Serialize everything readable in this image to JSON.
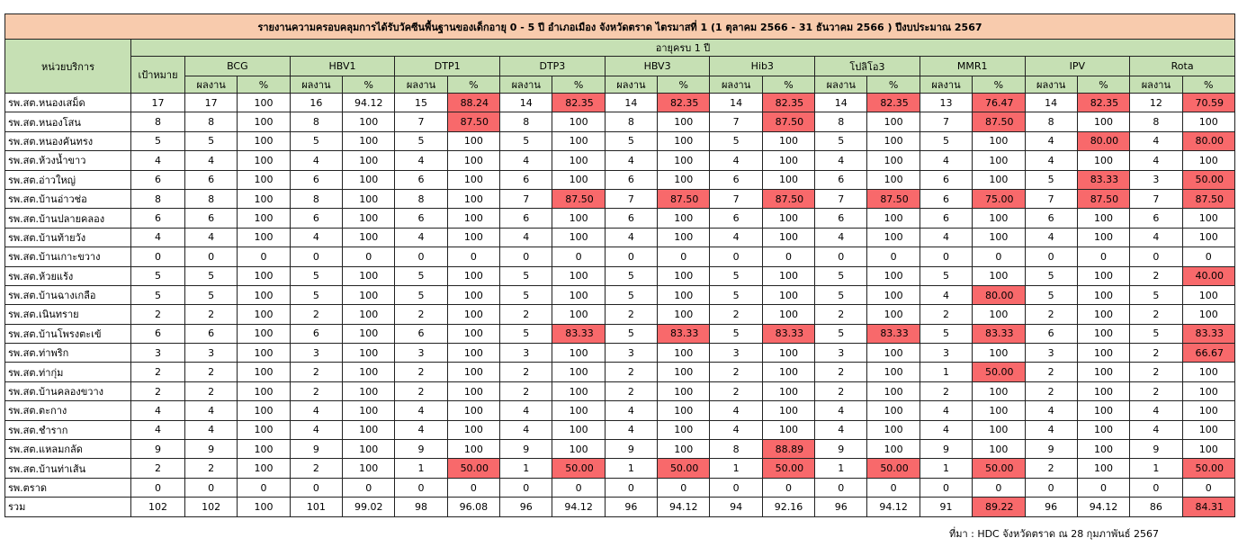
{
  "title": "รายงานความครอบคลุมการได้รับวัคซีนพื้นฐานของเด็กอายุ 0 - 5 ปี อำเภอเมือง จังหวัดตราด ไตรมาสที่ 1 (1 ตุลาคม 2566 - 31 ธันวาคม 2566 ) ปีงบประมาณ 2567",
  "headers": {
    "unit": "หน่วยบริการ",
    "group": "อายุครบ 1 ปี",
    "target": "เป้าหมาย",
    "vaccines": [
      "BCG",
      "HBV1",
      "DTP1",
      "DTP3",
      "HBV3",
      "Hib3",
      "โปลิโอ3",
      "MMR1",
      "IPV",
      "Rota"
    ],
    "sub": [
      "ผลงาน",
      "%"
    ]
  },
  "table": {
    "rows": [
      [
        "รพ.สต.หนองเสม็ด",
        "17",
        "17",
        "100",
        "16",
        "94.12",
        "15",
        "88.24",
        "14",
        "82.35",
        "14",
        "82.35",
        "14",
        "82.35",
        "14",
        "82.35",
        "13",
        "76.47",
        "14",
        "82.35",
        "12",
        "70.59"
      ],
      [
        "รพ.สต.หนองโสน",
        "8",
        "8",
        "100",
        "8",
        "100",
        "7",
        "87.50",
        "8",
        "100",
        "8",
        "100",
        "7",
        "87.50",
        "8",
        "100",
        "7",
        "87.50",
        "8",
        "100",
        "8",
        "100"
      ],
      [
        "รพ.สต.หนองคันทรง",
        "5",
        "5",
        "100",
        "5",
        "100",
        "5",
        "100",
        "5",
        "100",
        "5",
        "100",
        "5",
        "100",
        "5",
        "100",
        "5",
        "100",
        "4",
        "80.00",
        "4",
        "80.00"
      ],
      [
        "รพ.สต.ห้วงน้ำขาว",
        "4",
        "4",
        "100",
        "4",
        "100",
        "4",
        "100",
        "4",
        "100",
        "4",
        "100",
        "4",
        "100",
        "4",
        "100",
        "4",
        "100",
        "4",
        "100",
        "4",
        "100"
      ],
      [
        "รพ.สต.อ่าวใหญ่",
        "6",
        "6",
        "100",
        "6",
        "100",
        "6",
        "100",
        "6",
        "100",
        "6",
        "100",
        "6",
        "100",
        "6",
        "100",
        "6",
        "100",
        "5",
        "83.33",
        "3",
        "50.00"
      ],
      [
        "รพ.สต.บ้านอ่าวช่อ",
        "8",
        "8",
        "100",
        "8",
        "100",
        "8",
        "100",
        "7",
        "87.50",
        "7",
        "87.50",
        "7",
        "87.50",
        "7",
        "87.50",
        "6",
        "75.00",
        "7",
        "87.50",
        "7",
        "87.50"
      ],
      [
        "รพ.สต.บ้านปลายคลอง",
        "6",
        "6",
        "100",
        "6",
        "100",
        "6",
        "100",
        "6",
        "100",
        "6",
        "100",
        "6",
        "100",
        "6",
        "100",
        "6",
        "100",
        "6",
        "100",
        "6",
        "100"
      ],
      [
        "รพ.สต.บ้านท้ายวัง",
        "4",
        "4",
        "100",
        "4",
        "100",
        "4",
        "100",
        "4",
        "100",
        "4",
        "100",
        "4",
        "100",
        "4",
        "100",
        "4",
        "100",
        "4",
        "100",
        "4",
        "100"
      ],
      [
        "รพ.สต.บ้านเกาะขวาง",
        "0",
        "0",
        "0",
        "0",
        "0",
        "0",
        "0",
        "0",
        "0",
        "0",
        "0",
        "0",
        "0",
        "0",
        "0",
        "0",
        "0",
        "0",
        "0",
        "0",
        "0"
      ],
      [
        "รพ.สต.ห้วยแร้ง",
        "5",
        "5",
        "100",
        "5",
        "100",
        "5",
        "100",
        "5",
        "100",
        "5",
        "100",
        "5",
        "100",
        "5",
        "100",
        "5",
        "100",
        "5",
        "100",
        "2",
        "40.00"
      ],
      [
        "รพ.สต.บ้านฉางเกลือ",
        "5",
        "5",
        "100",
        "5",
        "100",
        "5",
        "100",
        "5",
        "100",
        "5",
        "100",
        "5",
        "100",
        "5",
        "100",
        "4",
        "80.00",
        "5",
        "100",
        "5",
        "100"
      ],
      [
        "รพ.สต.เนินทราย",
        "2",
        "2",
        "100",
        "2",
        "100",
        "2",
        "100",
        "2",
        "100",
        "2",
        "100",
        "2",
        "100",
        "2",
        "100",
        "2",
        "100",
        "2",
        "100",
        "2",
        "100"
      ],
      [
        "รพ.สต.บ้านโพรงตะเข้",
        "6",
        "6",
        "100",
        "6",
        "100",
        "6",
        "100",
        "5",
        "83.33",
        "5",
        "83.33",
        "5",
        "83.33",
        "5",
        "83.33",
        "5",
        "83.33",
        "6",
        "100",
        "5",
        "83.33"
      ],
      [
        "รพ.สต.ท่าพริก",
        "3",
        "3",
        "100",
        "3",
        "100",
        "3",
        "100",
        "3",
        "100",
        "3",
        "100",
        "3",
        "100",
        "3",
        "100",
        "3",
        "100",
        "3",
        "100",
        "2",
        "66.67"
      ],
      [
        "รพ.สต.ท่ากุ่ม",
        "2",
        "2",
        "100",
        "2",
        "100",
        "2",
        "100",
        "2",
        "100",
        "2",
        "100",
        "2",
        "100",
        "2",
        "100",
        "1",
        "50.00",
        "2",
        "100",
        "2",
        "100"
      ],
      [
        "รพ.สต.บ้านคลองขวาง",
        "2",
        "2",
        "100",
        "2",
        "100",
        "2",
        "100",
        "2",
        "100",
        "2",
        "100",
        "2",
        "100",
        "2",
        "100",
        "2",
        "100",
        "2",
        "100",
        "2",
        "100"
      ],
      [
        "รพ.สต.ตะกาง",
        "4",
        "4",
        "100",
        "4",
        "100",
        "4",
        "100",
        "4",
        "100",
        "4",
        "100",
        "4",
        "100",
        "4",
        "100",
        "4",
        "100",
        "4",
        "100",
        "4",
        "100"
      ],
      [
        "รพ.สต.ชำราก",
        "4",
        "4",
        "100",
        "4",
        "100",
        "4",
        "100",
        "4",
        "100",
        "4",
        "100",
        "4",
        "100",
        "4",
        "100",
        "4",
        "100",
        "4",
        "100",
        "4",
        "100"
      ],
      [
        "รพ.สต.แหลมกลัด",
        "9",
        "9",
        "100",
        "9",
        "100",
        "9",
        "100",
        "9",
        "100",
        "9",
        "100",
        "8",
        "88.89",
        "9",
        "100",
        "9",
        "100",
        "9",
        "100",
        "9",
        "100"
      ],
      [
        "รพ.สต.บ้านท่าเส้น",
        "2",
        "2",
        "100",
        "2",
        "100",
        "1",
        "50.00",
        "1",
        "50.00",
        "1",
        "50.00",
        "1",
        "50.00",
        "1",
        "50.00",
        "1",
        "50.00",
        "2",
        "100",
        "1",
        "50.00"
      ],
      [
        "รพ.ตราด",
        "0",
        "0",
        "0",
        "0",
        "0",
        "0",
        "0",
        "0",
        "0",
        "0",
        "0",
        "0",
        "0",
        "0",
        "0",
        "0",
        "0",
        "0",
        "0",
        "0",
        "0"
      ],
      [
        "รวม",
        "102",
        "102",
        "100",
        "101",
        "99.02",
        "98",
        "96.08",
        "96",
        "94.12",
        "96",
        "94.12",
        "94",
        "92.16",
        "96",
        "94.12",
        "91",
        "89.22",
        "96",
        "94.12",
        "86",
        "84.31"
      ]
    ]
  },
  "source": "ที่มา : HDC จังหวัดตราด ณ 28 กุมภาพันธ์ 2567"
}
